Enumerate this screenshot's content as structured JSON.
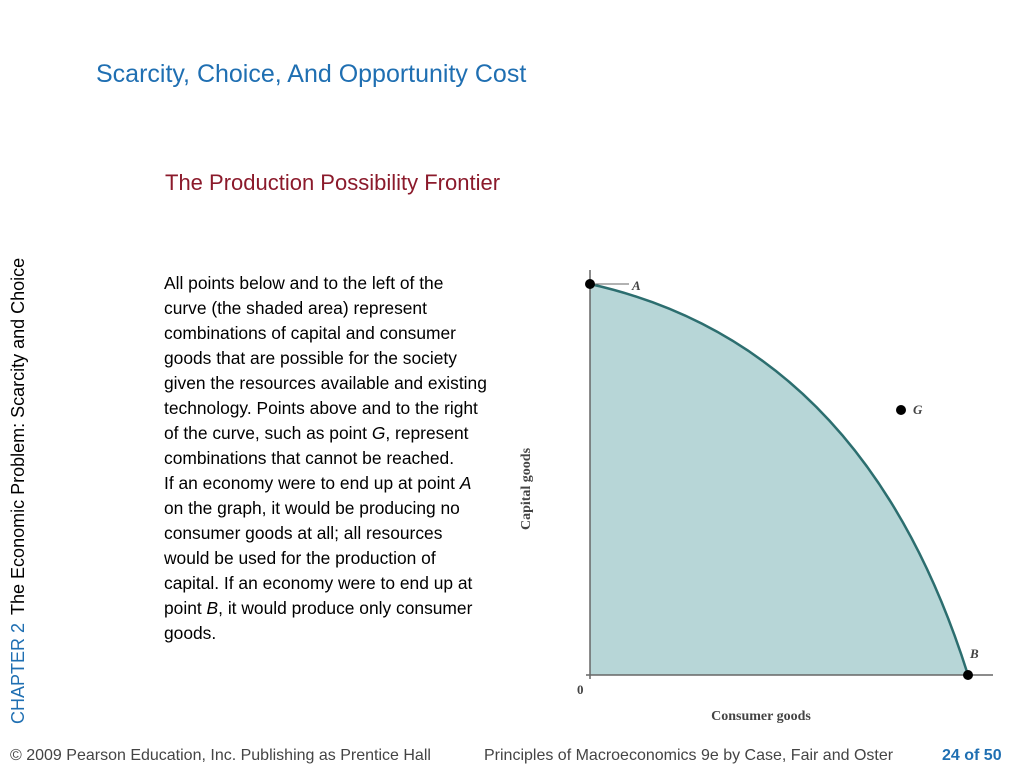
{
  "slide": {
    "title": "Scarcity, Choice, And Opportunity Cost",
    "subtitle": "The Production Possibility Frontier",
    "chapter_label": "CHAPTER 2",
    "chapter_title": "The Economic Problem:  Scarcity and Choice"
  },
  "body": {
    "p1_a": "All points below and to the left of the curve (the shaded area) represent combinations of capital and consumer goods that are possible for the society given the resources available and existing technology. Points above and to the right of the curve, such as point ",
    "p1_g": "G",
    "p1_b": ", represent combinations that cannot be reached.",
    "p2_a": "If an economy were to end up at point ",
    "p2_A": "A",
    "p2_b": " on the graph, it would be producing no consumer goods at all; all resources would be used for the production of capital. If an economy were to end up at point ",
    "p2_B": "B",
    "p2_c": ", it would produce only consumer goods."
  },
  "graph": {
    "y_axis_label": "Capital goods",
    "x_axis_label": "Consumer goods",
    "origin_label": "0",
    "point_a_label": "A",
    "point_b_label": "B",
    "point_g_label": "G",
    "fill_color": "#b7d6d7",
    "curve_color": "#2c6e6f"
  },
  "footer": {
    "copyright": "© 2009 Pearson Education, Inc. Publishing as Prentice Hall",
    "book": "Principles of Macroeconomics 9e by Case, Fair and Oster",
    "page": "24 of 50"
  }
}
